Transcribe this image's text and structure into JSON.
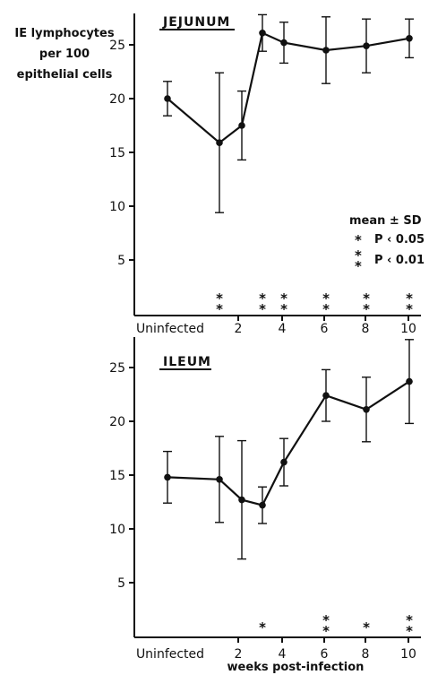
{
  "ylabel_lines": [
    "IE lymphocytes",
    "per 100",
    "epithelial cells"
  ],
  "xlabel": "weeks post-infection",
  "legend": {
    "title": "mean ± SD",
    "single": "P ‹ 0.05",
    "double": "P ‹ 0.01"
  },
  "chart_data": [
    {
      "type": "line",
      "title": "JEJUNUM",
      "x_categories": [
        "Uninfected",
        "2",
        "4",
        "6",
        "8",
        "10"
      ],
      "ylim": [
        0,
        28
      ],
      "yticks": [
        5,
        10,
        15,
        20,
        25
      ],
      "series": [
        {
          "points": [
            {
              "x": 0,
              "label": "Uninfected",
              "y": 20.0,
              "sd": 1.6
            },
            {
              "x": 1,
              "y": 15.9,
              "sd": 6.5
            },
            {
              "x": 2,
              "y": 17.5,
              "sd": 3.2
            },
            {
              "x": 3,
              "y": 26.1,
              "sd": 1.7
            },
            {
              "x": 4,
              "y": 25.2,
              "sd": 1.9
            },
            {
              "x": 6,
              "y": 24.5,
              "sd": 3.1
            },
            {
              "x": 8,
              "y": 24.9,
              "sd": 2.5
            },
            {
              "x": 10,
              "y": 25.6,
              "sd": 1.8
            }
          ]
        }
      ],
      "significance": [
        {
          "x": 1,
          "stars": 2
        },
        {
          "x": 3,
          "stars": 2
        },
        {
          "x": 4,
          "stars": 2
        },
        {
          "x": 6,
          "stars": 2
        },
        {
          "x": 8,
          "stars": 2
        },
        {
          "x": 10,
          "stars": 2
        }
      ]
    },
    {
      "type": "line",
      "title": "ILEUM",
      "x_categories": [
        "Uninfected",
        "2",
        "4",
        "6",
        "8",
        "10"
      ],
      "ylim": [
        0,
        28
      ],
      "yticks": [
        5,
        10,
        15,
        20,
        25
      ],
      "series": [
        {
          "points": [
            {
              "x": 0,
              "label": "Uninfected",
              "y": 14.8,
              "sd": 2.4
            },
            {
              "x": 1,
              "y": 14.6,
              "sd": 4.0
            },
            {
              "x": 2,
              "y": 12.7,
              "sd": 5.5
            },
            {
              "x": 3,
              "y": 12.2,
              "sd": 1.7
            },
            {
              "x": 4,
              "y": 16.2,
              "sd": 2.2
            },
            {
              "x": 6,
              "y": 22.4,
              "sd": 2.4
            },
            {
              "x": 8,
              "y": 21.1,
              "sd": 3.0
            },
            {
              "x": 10,
              "y": 23.7,
              "sd": 3.9
            }
          ]
        }
      ],
      "significance": [
        {
          "x": 3,
          "stars": 1
        },
        {
          "x": 6,
          "stars": 2
        },
        {
          "x": 8,
          "stars": 1
        },
        {
          "x": 10,
          "stars": 2
        }
      ]
    }
  ]
}
